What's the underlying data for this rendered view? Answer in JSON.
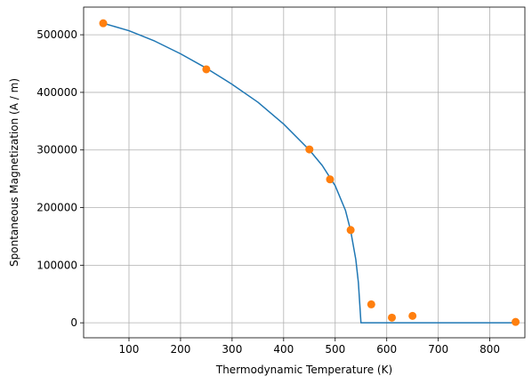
{
  "chart_data": {
    "type": "line",
    "xlabel": "Thermodynamic Temperature (K)",
    "ylabel": "Spontaneous Magnetization (A / m)",
    "xlim": [
      12,
      868
    ],
    "ylim": [
      -26000,
      548000
    ],
    "xticks": [
      100,
      200,
      300,
      400,
      500,
      600,
      700,
      800
    ],
    "yticks": [
      0,
      100000,
      200000,
      300000,
      400000,
      500000
    ],
    "grid": true,
    "series": [
      {
        "kind": "line",
        "color": "#1f77b4",
        "x": [
          50,
          100,
          150,
          200,
          250,
          300,
          350,
          400,
          450,
          475,
          500,
          520,
          530,
          540,
          545,
          550,
          600,
          700,
          850
        ],
        "y": [
          520000,
          507000,
          489000,
          467000,
          442000,
          414000,
          383000,
          345000,
          300000,
          273000,
          238000,
          195000,
          160000,
          110000,
          70000,
          0,
          0,
          0,
          0
        ]
      },
      {
        "kind": "scatter",
        "color": "#ff7f0e",
        "x": [
          50,
          250,
          450,
          490,
          530,
          570,
          610,
          650,
          850
        ],
        "y": [
          520000,
          440000,
          301000,
          249000,
          161000,
          32000,
          9000,
          12000,
          1500
        ]
      }
    ]
  }
}
